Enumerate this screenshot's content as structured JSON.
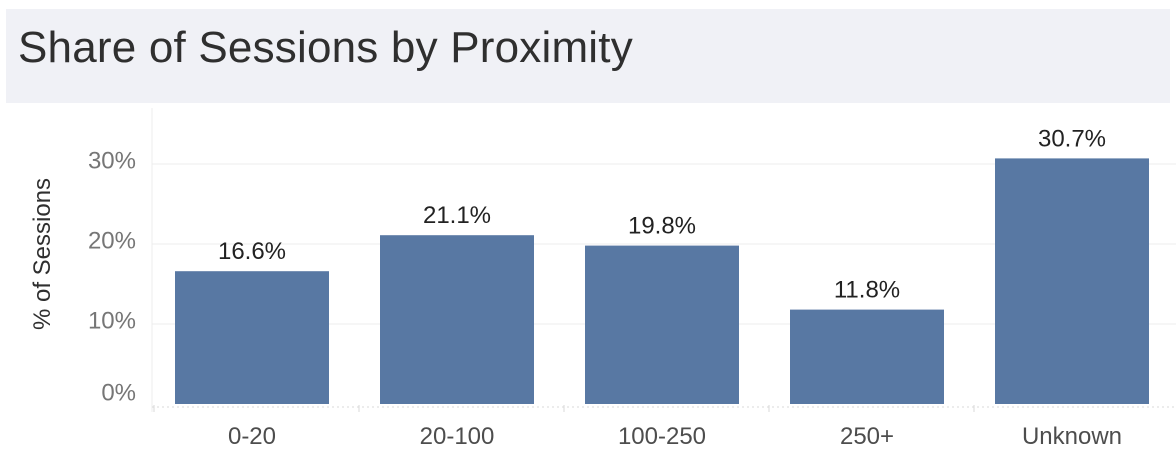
{
  "title": "Share of Sessions by Proximity",
  "chart_data": {
    "type": "bar",
    "title": "Share of Sessions by Proximity",
    "xlabel": "",
    "ylabel": "% of Sessions",
    "categories": [
      "0-20",
      "20-100",
      "100-250",
      "250+",
      "Unknown"
    ],
    "values": [
      16.6,
      21.1,
      19.8,
      11.8,
      30.7
    ],
    "value_labels": [
      "16.6%",
      "21.1%",
      "19.8%",
      "11.8%",
      "30.7%"
    ],
    "yticks": [
      0,
      10,
      20,
      30
    ],
    "ytick_labels": [
      "0%",
      "10%",
      "20%",
      "30%"
    ],
    "ylim": [
      0,
      32
    ],
    "grid": true,
    "legend": "none",
    "bar_color": "#5878a3",
    "grid_color": "#ececec"
  }
}
